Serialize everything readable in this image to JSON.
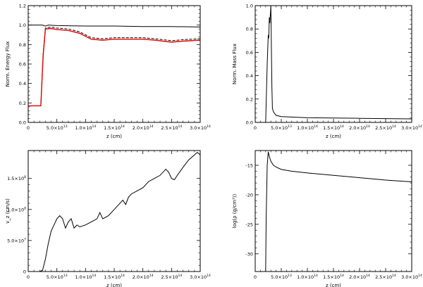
{
  "chart_data": [
    {
      "type": "line",
      "xlabel": "z (cm)",
      "ylabel": "Norm. Energy Flux",
      "xlim": [
        0,
        300000000000000.0
      ],
      "ylim": [
        0,
        1.2
      ],
      "xticks": [
        {
          "v": 0,
          "m": "0",
          "e": ""
        },
        {
          "v": 50000000000000.0,
          "m": "5.0×10",
          "e": "13"
        },
        {
          "v": 100000000000000.0,
          "m": "1.0×10",
          "e": "14"
        },
        {
          "v": 150000000000000.0,
          "m": "1.5×10",
          "e": "14"
        },
        {
          "v": 200000000000000.0,
          "m": "2.0×10",
          "e": "14"
        },
        {
          "v": 250000000000000.0,
          "m": "2.5×10",
          "e": "14"
        },
        {
          "v": 300000000000000.0,
          "m": "3.0×10",
          "e": "14"
        }
      ],
      "yticks": [
        {
          "v": 0,
          "m": "0.0"
        },
        {
          "v": 0.2,
          "m": "0.2"
        },
        {
          "v": 0.4,
          "m": "0.4"
        },
        {
          "v": 0.6,
          "m": "0.6"
        },
        {
          "v": 0.8,
          "m": "0.8"
        },
        {
          "v": 1.0,
          "m": "1.0"
        },
        {
          "v": 1.2,
          "m": "1.2"
        }
      ],
      "series": [
        {
          "color": "#000000",
          "dash": "",
          "x": [
            0,
            25000000000000.0,
            30000000000000.0,
            35000000000000.0,
            50000000000000.0,
            100000000000000.0,
            150000000000000.0,
            200000000000000.0,
            250000000000000.0,
            300000000000000.0
          ],
          "y": [
            1.0,
            1.0,
            0.99,
            1.0,
            0.995,
            0.99,
            0.99,
            0.985,
            0.985,
            0.98
          ]
        },
        {
          "color": "#000000",
          "dash": "4,2",
          "x": [
            0,
            22000000000000.0,
            26000000000000.0,
            30000000000000.0,
            40000000000000.0,
            50000000000000.0,
            70000000000000.0,
            90000000000000.0,
            110000000000000.0,
            130000000000000.0,
            150000000000000.0,
            170000000000000.0,
            200000000000000.0,
            220000000000000.0,
            250000000000000.0,
            270000000000000.0,
            300000000000000.0
          ],
          "y": [
            0.17,
            0.17,
            0.7,
            0.97,
            0.98,
            0.97,
            0.96,
            0.93,
            0.87,
            0.86,
            0.87,
            0.87,
            0.87,
            0.86,
            0.84,
            0.85,
            0.86
          ]
        },
        {
          "color": "#e00000",
          "dash": "",
          "x": [
            0,
            22000000000000.0,
            26000000000000.0,
            30000000000000.0,
            40000000000000.0,
            50000000000000.0,
            70000000000000.0,
            90000000000000.0,
            110000000000000.0,
            130000000000000.0,
            150000000000000.0,
            170000000000000.0,
            200000000000000.0,
            220000000000000.0,
            250000000000000.0,
            270000000000000.0,
            300000000000000.0
          ],
          "y": [
            0.17,
            0.17,
            0.68,
            0.96,
            0.965,
            0.955,
            0.945,
            0.915,
            0.855,
            0.845,
            0.855,
            0.855,
            0.855,
            0.845,
            0.825,
            0.835,
            0.845
          ]
        },
        {
          "color": "#000000",
          "dash": "1,3",
          "x": [
            0,
            300000000000000.0
          ],
          "y": [
            0.0,
            0.0
          ]
        }
      ]
    },
    {
      "type": "line",
      "xlabel": "z (cm)",
      "ylabel": "Norm. Mass Flux",
      "xlim": [
        0,
        300000000000000.0
      ],
      "ylim": [
        0,
        1.0
      ],
      "xticks": [
        {
          "v": 0,
          "m": "0",
          "e": ""
        },
        {
          "v": 50000000000000.0,
          "m": "5.0×10",
          "e": "13"
        },
        {
          "v": 100000000000000.0,
          "m": "1.0×10",
          "e": "14"
        },
        {
          "v": 150000000000000.0,
          "m": "1.5×10",
          "e": "14"
        },
        {
          "v": 200000000000000.0,
          "m": "2.0×10",
          "e": "14"
        },
        {
          "v": 250000000000000.0,
          "m": "2.5×10",
          "e": "14"
        },
        {
          "v": 300000000000000.0,
          "m": "3.0×10",
          "e": "14"
        }
      ],
      "yticks": [
        {
          "v": 0,
          "m": "0.0"
        },
        {
          "v": 0.2,
          "m": "0.2"
        },
        {
          "v": 0.4,
          "m": "0.4"
        },
        {
          "v": 0.6,
          "m": "0.6"
        },
        {
          "v": 0.8,
          "m": "0.8"
        },
        {
          "v": 1.0,
          "m": "1.0"
        }
      ],
      "series": [
        {
          "color": "#000000",
          "dash": "",
          "x": [
            0,
            20000000000000.0,
            23000000000000.0,
            25000000000000.0,
            26000000000000.0,
            27000000000000.0,
            28000000000000.0,
            30000000000000.0,
            32000000000000.0,
            33000000000000.0,
            35000000000000.0,
            40000000000000.0,
            50000000000000.0,
            100000000000000.0,
            200000000000000.0,
            300000000000000.0
          ],
          "y": [
            0,
            0,
            0.5,
            0.75,
            0.72,
            0.9,
            0.85,
            1.0,
            0.3,
            0.12,
            0.09,
            0.06,
            0.05,
            0.04,
            0.035,
            0.03
          ]
        }
      ]
    },
    {
      "type": "line",
      "xlabel": "z (cm)",
      "ylabel": "v_z (cm/s)",
      "xlim": [
        0,
        300000000000000.0
      ],
      "ylim": [
        0,
        195000000.0
      ],
      "xticks": [
        {
          "v": 0,
          "m": "0",
          "e": ""
        },
        {
          "v": 50000000000000.0,
          "m": "5.0×10",
          "e": "13"
        },
        {
          "v": 100000000000000.0,
          "m": "1.0×10",
          "e": "14"
        },
        {
          "v": 150000000000000.0,
          "m": "1.5×10",
          "e": "14"
        },
        {
          "v": 200000000000000.0,
          "m": "2.0×10",
          "e": "14"
        },
        {
          "v": 250000000000000.0,
          "m": "2.5×10",
          "e": "14"
        },
        {
          "v": 300000000000000.0,
          "m": "3.0×10",
          "e": "14"
        }
      ],
      "yticks": [
        {
          "v": 0,
          "m": "0",
          "e": ""
        },
        {
          "v": 50000000.0,
          "m": "5.0×10",
          "e": "7"
        },
        {
          "v": 100000000.0,
          "m": "1.0×10",
          "e": "8"
        },
        {
          "v": 150000000.0,
          "m": "1.5×10",
          "e": "8"
        }
      ],
      "series": [
        {
          "color": "#000000",
          "dash": "",
          "x": [
            0,
            20000000000000.0,
            25000000000000.0,
            30000000000000.0,
            35000000000000.0,
            40000000000000.0,
            45000000000000.0,
            50000000000000.0,
            55000000000000.0,
            60000000000000.0,
            65000000000000.0,
            70000000000000.0,
            75000000000000.0,
            80000000000000.0,
            85000000000000.0,
            90000000000000.0,
            100000000000000.0,
            110000000000000.0,
            120000000000000.0,
            125000000000000.0,
            130000000000000.0,
            140000000000000.0,
            150000000000000.0,
            160000000000000.0,
            165000000000000.0,
            170000000000000.0,
            175000000000000.0,
            180000000000000.0,
            190000000000000.0,
            200000000000000.0,
            210000000000000.0,
            220000000000000.0,
            230000000000000.0,
            240000000000000.0,
            245000000000000.0,
            250000000000000.0,
            255000000000000.0,
            260000000000000.0,
            270000000000000.0,
            280000000000000.0,
            290000000000000.0,
            295000000000000.0,
            300000000000000.0
          ],
          "y": [
            0,
            0,
            2000000.0,
            20000000.0,
            45000000.0,
            65000000.0,
            75000000.0,
            85000000.0,
            90000000.0,
            85000000.0,
            70000000.0,
            80000000.0,
            85000000.0,
            70000000.0,
            75000000.0,
            72000000.0,
            75000000.0,
            80000000.0,
            85000000.0,
            95000000.0,
            85000000.0,
            90000000.0,
            100000000.0,
            110000000.0,
            115000000.0,
            108000000.0,
            120000000.0,
            125000000.0,
            130000000.0,
            135000000.0,
            145000000.0,
            150000000.0,
            155000000.0,
            165000000.0,
            160000000.0,
            150000000.0,
            148000000.0,
            155000000.0,
            168000000.0,
            180000000.0,
            188000000.0,
            192000000.0,
            188000000.0
          ]
        }
      ]
    },
    {
      "type": "line",
      "xlabel": "z (cm)",
      "ylabel": "log(ρ (g/cm³))",
      "xlim": [
        0,
        300000000000000.0
      ],
      "ylim": [
        -33,
        -12.5
      ],
      "xticks": [
        {
          "v": 0,
          "m": "0",
          "e": ""
        },
        {
          "v": 50000000000000.0,
          "m": "5.0×10",
          "e": "13"
        },
        {
          "v": 100000000000000.0,
          "m": "1.0×10",
          "e": "14"
        },
        {
          "v": 150000000000000.0,
          "m": "1.5×10",
          "e": "14"
        },
        {
          "v": 200000000000000.0,
          "m": "2.0×10",
          "e": "14"
        },
        {
          "v": 250000000000000.0,
          "m": "2.5×10",
          "e": "14"
        },
        {
          "v": 300000000000000.0,
          "m": "3.0×10",
          "e": "14"
        }
      ],
      "yticks": [
        {
          "v": -30,
          "m": "-30"
        },
        {
          "v": -25,
          "m": "-25"
        },
        {
          "v": -20,
          "m": "-20"
        },
        {
          "v": -15,
          "m": "-15"
        }
      ],
      "series": [
        {
          "color": "#000000",
          "dash": "",
          "x": [
            0,
            20000000000000.0,
            21000000000000.0,
            23000000000000.0,
            25000000000000.0,
            27000000000000.0,
            30000000000000.0,
            35000000000000.0,
            40000000000000.0,
            50000000000000.0,
            70000000000000.0,
            100000000000000.0,
            150000000000000.0,
            200000000000000.0,
            250000000000000.0,
            300000000000000.0
          ],
          "y": [
            -33,
            -33,
            -24,
            -15,
            -12.7,
            -13.5,
            -14.3,
            -15.0,
            -15.3,
            -15.7,
            -16.0,
            -16.3,
            -16.7,
            -17.1,
            -17.5,
            -17.8
          ]
        }
      ]
    }
  ]
}
